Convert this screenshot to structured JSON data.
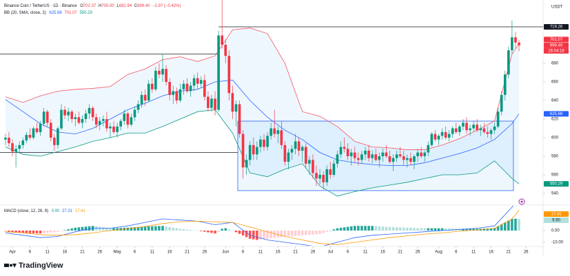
{
  "chart_data": {
    "type": "candlestick",
    "title": "Binance Coin / TetherUS · 1D · Binance",
    "quote": [
      {
        "label": "O",
        "value": "702.37"
      },
      {
        "label": "H",
        "value": "705.00"
      },
      {
        "label": "L",
        "value": "692.94"
      },
      {
        "label": "C",
        "value": "699.40"
      }
    ],
    "change": "−2.97 (−0.42%)",
    "currency": "USDT",
    "countdown": "16:04:18",
    "brand": "TradingView",
    "colors": {
      "up": "#089981",
      "down": "#f23645"
    },
    "grid": false,
    "ylim": [
      528.15,
      748.15
    ],
    "yticks": [
      540,
      560,
      580,
      600,
      620,
      640,
      660,
      680
    ],
    "xlim": [
      -1.56,
      153.9
    ],
    "xticks": [
      {
        "value": 2,
        "label": "Apr"
      },
      {
        "value": 7,
        "label": "6"
      },
      {
        "value": 12,
        "label": "11"
      },
      {
        "value": 17,
        "label": "16"
      },
      {
        "value": 22,
        "label": "21"
      },
      {
        "value": 27,
        "label": "26"
      },
      {
        "value": 32,
        "label": "May"
      },
      {
        "value": 37,
        "label": "6"
      },
      {
        "value": 42,
        "label": "11"
      },
      {
        "value": 47,
        "label": "16"
      },
      {
        "value": 52,
        "label": "21"
      },
      {
        "value": 57,
        "label": "26"
      },
      {
        "value": 63,
        "label": "Jun"
      },
      {
        "value": 68,
        "label": "6"
      },
      {
        "value": 73,
        "label": "11"
      },
      {
        "value": 78,
        "label": "16"
      },
      {
        "value": 83,
        "label": "21"
      },
      {
        "value": 88,
        "label": "26"
      },
      {
        "value": 93,
        "label": "Jul"
      },
      {
        "value": 98,
        "label": "6"
      },
      {
        "value": 103,
        "label": "11"
      },
      {
        "value": 108,
        "label": "16"
      },
      {
        "value": 113,
        "label": "21"
      },
      {
        "value": 118,
        "label": "26"
      },
      {
        "value": 124,
        "label": "Aug"
      },
      {
        "value": 129,
        "label": "6"
      },
      {
        "value": 134,
        "label": "11"
      },
      {
        "value": 139,
        "label": "16"
      },
      {
        "value": 144,
        "label": "21"
      },
      {
        "value": 149,
        "label": "26"
      }
    ],
    "candles": [
      [
        598,
        604,
        592,
        600
      ],
      [
        600,
        606,
        590,
        594
      ],
      [
        594,
        598,
        580,
        585
      ],
      [
        585,
        592,
        568,
        588
      ],
      [
        588,
        596,
        584,
        592
      ],
      [
        592,
        600,
        588,
        597
      ],
      [
        597,
        606,
        594,
        603
      ],
      [
        603,
        610,
        598,
        600
      ],
      [
        600,
        612,
        598,
        610
      ],
      [
        610,
        616,
        604,
        606
      ],
      [
        606,
        618,
        602,
        615
      ],
      [
        615,
        632,
        612,
        628
      ],
      [
        628,
        630,
        612,
        616
      ],
      [
        616,
        620,
        596,
        600
      ],
      [
        600,
        604,
        586,
        592
      ],
      [
        592,
        612,
        588,
        610
      ],
      [
        610,
        636,
        608,
        630
      ],
      [
        630,
        634,
        620,
        624
      ],
      [
        624,
        632,
        618,
        628
      ],
      [
        628,
        630,
        616,
        620
      ],
      [
        620,
        626,
        612,
        622
      ],
      [
        622,
        628,
        614,
        616
      ],
      [
        616,
        624,
        610,
        620
      ],
      [
        620,
        630,
        616,
        626
      ],
      [
        626,
        636,
        620,
        632
      ],
      [
        632,
        634,
        618,
        622
      ],
      [
        622,
        626,
        610,
        614
      ],
      [
        614,
        622,
        608,
        618
      ],
      [
        618,
        624,
        612,
        620
      ],
      [
        620,
        628,
        606,
        610
      ],
      [
        610,
        616,
        600,
        612
      ],
      [
        612,
        618,
        604,
        606
      ],
      [
        606,
        616,
        600,
        612
      ],
      [
        612,
        620,
        608,
        618
      ],
      [
        618,
        630,
        614,
        626
      ],
      [
        626,
        628,
        610,
        614
      ],
      [
        614,
        626,
        612,
        622
      ],
      [
        622,
        634,
        618,
        630
      ],
      [
        630,
        640,
        626,
        636
      ],
      [
        636,
        650,
        632,
        646
      ],
      [
        646,
        652,
        634,
        640
      ],
      [
        640,
        662,
        638,
        658
      ],
      [
        658,
        664,
        648,
        652
      ],
      [
        652,
        676,
        650,
        672
      ],
      [
        672,
        680,
        664,
        668
      ],
      [
        668,
        690,
        660,
        674
      ],
      [
        674,
        678,
        656,
        660
      ],
      [
        660,
        664,
        640,
        646
      ],
      [
        646,
        656,
        636,
        650
      ],
      [
        650,
        654,
        636,
        640
      ],
      [
        640,
        658,
        638,
        652
      ],
      [
        652,
        662,
        646,
        658
      ],
      [
        658,
        664,
        648,
        650
      ],
      [
        650,
        660,
        644,
        656
      ],
      [
        656,
        668,
        650,
        664
      ],
      [
        664,
        670,
        652,
        658
      ],
      [
        658,
        666,
        654,
        662
      ],
      [
        662,
        668,
        640,
        644
      ],
      [
        644,
        650,
        628,
        632
      ],
      [
        632,
        646,
        628,
        642
      ],
      [
        642,
        650,
        624,
        630
      ],
      [
        630,
        715,
        628,
        710
      ],
      [
        710,
        748,
        696,
        700
      ],
      [
        700,
        706,
        680,
        688
      ],
      [
        688,
        694,
        640,
        648
      ],
      [
        648,
        656,
        620,
        628
      ],
      [
        628,
        640,
        612,
        636
      ],
      [
        636,
        640,
        600,
        604
      ],
      [
        604,
        608,
        556,
        568
      ],
      [
        568,
        582,
        560,
        576
      ],
      [
        576,
        596,
        570,
        592
      ],
      [
        592,
        600,
        576,
        582
      ],
      [
        582,
        596,
        576,
        590
      ],
      [
        590,
        602,
        584,
        598
      ],
      [
        598,
        604,
        586,
        590
      ],
      [
        590,
        606,
        586,
        602
      ],
      [
        602,
        616,
        598,
        610
      ],
      [
        610,
        630,
        600,
        604
      ],
      [
        604,
        612,
        594,
        608
      ],
      [
        608,
        618,
        588,
        592
      ],
      [
        592,
        596,
        570,
        574
      ],
      [
        574,
        588,
        566,
        584
      ],
      [
        584,
        592,
        576,
        588
      ],
      [
        588,
        604,
        582,
        596
      ],
      [
        596,
        600,
        580,
        586
      ],
      [
        586,
        592,
        574,
        590
      ],
      [
        590,
        594,
        568,
        572
      ],
      [
        572,
        580,
        560,
        576
      ],
      [
        576,
        582,
        556,
        562
      ],
      [
        562,
        570,
        548,
        556
      ],
      [
        556,
        566,
        550,
        560
      ],
      [
        560,
        564,
        544,
        552
      ],
      [
        552,
        570,
        548,
        566
      ],
      [
        566,
        574,
        556,
        560
      ],
      [
        560,
        576,
        558,
        572
      ],
      [
        572,
        586,
        568,
        582
      ],
      [
        582,
        596,
        578,
        590
      ],
      [
        590,
        600,
        584,
        588
      ],
      [
        588,
        594,
        576,
        580
      ],
      [
        580,
        588,
        570,
        584
      ],
      [
        584,
        590,
        574,
        578
      ],
      [
        578,
        584,
        570,
        576
      ],
      [
        576,
        586,
        572,
        582
      ],
      [
        582,
        590,
        576,
        586
      ],
      [
        586,
        592,
        574,
        578
      ],
      [
        578,
        586,
        572,
        582
      ],
      [
        582,
        588,
        574,
        576
      ],
      [
        576,
        584,
        568,
        580
      ],
      [
        580,
        588,
        574,
        584
      ],
      [
        584,
        592,
        578,
        580
      ],
      [
        580,
        586,
        572,
        574
      ],
      [
        574,
        582,
        564,
        578
      ],
      [
        578,
        586,
        574,
        582
      ],
      [
        582,
        590,
        578,
        580
      ],
      [
        580,
        586,
        570,
        576
      ],
      [
        576,
        582,
        568,
        578
      ],
      [
        578,
        584,
        570,
        574
      ],
      [
        574,
        582,
        566,
        580
      ],
      [
        580,
        588,
        574,
        584
      ],
      [
        584,
        590,
        578,
        580
      ],
      [
        580,
        586,
        574,
        584
      ],
      [
        584,
        596,
        580,
        592
      ],
      [
        592,
        606,
        590,
        604
      ],
      [
        604,
        608,
        596,
        598
      ],
      [
        598,
        604,
        592,
        602
      ],
      [
        602,
        610,
        598,
        606
      ],
      [
        606,
        612,
        598,
        600
      ],
      [
        600,
        608,
        596,
        604
      ],
      [
        604,
        612,
        600,
        610
      ],
      [
        610,
        616,
        604,
        606
      ],
      [
        606,
        614,
        602,
        612
      ],
      [
        612,
        620,
        608,
        616
      ],
      [
        616,
        622,
        604,
        608
      ],
      [
        608,
        614,
        602,
        610
      ],
      [
        610,
        618,
        606,
        614
      ],
      [
        614,
        620,
        606,
        608
      ],
      [
        608,
        614,
        602,
        610
      ],
      [
        610,
        616,
        604,
        606
      ],
      [
        606,
        612,
        600,
        604
      ],
      [
        604,
        610,
        598,
        608
      ],
      [
        608,
        616,
        604,
        612
      ],
      [
        612,
        632,
        610,
        628
      ],
      [
        628,
        650,
        624,
        646
      ],
      [
        646,
        672,
        640,
        668
      ],
      [
        668,
        698,
        664,
        694
      ],
      [
        694,
        726,
        690,
        708
      ],
      [
        708,
        714,
        696,
        702.37
      ],
      [
        702.37,
        705,
        692.94,
        699.4
      ]
    ],
    "bollinger": {
      "name": "BB (20, SMA, close, 2)",
      "fill": "rgba(33,150,243,0.08)",
      "x": [
        0,
        5,
        10,
        15,
        20,
        25,
        30,
        35,
        40,
        45,
        50,
        55,
        60,
        65,
        70,
        75,
        80,
        85,
        90,
        95,
        100,
        105,
        110,
        115,
        120,
        125,
        130,
        135,
        140,
        145,
        147
      ],
      "upper": {
        "color": "#f7525f",
        "values": [
          644,
          638,
          645,
          650,
          652,
          653,
          655,
          668,
          674,
          684,
          687,
          682,
          688,
          716,
          718,
          712,
          680,
          628,
          623,
          612,
          596,
          590,
          589,
          587,
          587,
          592,
          599,
          608,
          618,
          690,
          701.07
        ]
      },
      "middle": {
        "color": "#2962ff",
        "values": [
          641,
          628,
          615,
          606,
          604,
          610,
          620,
          630,
          637,
          645,
          650,
          652,
          660,
          662,
          640,
          622,
          608,
          598,
          584,
          576,
          573,
          571,
          570,
          570,
          573,
          578,
          583,
          589,
          598,
          615,
          625.68
        ]
      },
      "lower": {
        "color": "#089981",
        "values": [
          590,
          582,
          580,
          585,
          590,
          596,
          600,
          605,
          605,
          612,
          620,
          628,
          630,
          605,
          562,
          558,
          566,
          572,
          548,
          537,
          542,
          546,
          549,
          552,
          556,
          560,
          560,
          562,
          575,
          556,
          550.29
        ]
      }
    },
    "drawings": {
      "color": "#131722",
      "hlines": [
        {
          "y": 690,
          "x": [
            -1.56,
            61
          ]
        },
        {
          "y": 584,
          "x": [
            -1.56,
            66.5
          ]
        },
        {
          "y": 719.26,
          "x": [
            61,
            153.9
          ]
        }
      ],
      "box": {
        "x": [
          66.5,
          145.4
        ],
        "y": [
          543,
          617.8
        ],
        "stroke": "#2962ff",
        "fill": "rgba(33,150,243,0.08)"
      }
    },
    "macd": {
      "name": "MACD (close, 12, 26, 9)",
      "legend_values": [
        "9.90",
        "27.31",
        "17.41"
      ],
      "ylim": [
        -12.94,
        21.18
      ],
      "yticks": [
        {
          "value": 0,
          "label": "0.00"
        },
        {
          "value": -10,
          "label": "-10.00"
        }
      ],
      "x": [
        0,
        5,
        10,
        15,
        20,
        25,
        30,
        35,
        40,
        45,
        50,
        55,
        60,
        65,
        70,
        75,
        80,
        85,
        90,
        95,
        100,
        105,
        110,
        115,
        120,
        125,
        130,
        135,
        140,
        145,
        147
      ],
      "macd": {
        "color": "#2962ff",
        "values": [
          -2,
          -4,
          -6,
          -5,
          -1,
          2,
          2,
          4,
          7,
          10,
          9,
          8,
          5,
          7,
          -4,
          -8,
          -10,
          -12,
          -14,
          -10,
          -6,
          -4,
          -3,
          -2,
          -1,
          0,
          1,
          2,
          4,
          20,
          27.31
        ]
      },
      "signal": {
        "color": "#ff9800",
        "values": [
          -1,
          -2,
          -3.5,
          -4,
          -3.5,
          -2,
          0,
          1.5,
          3.5,
          6,
          7.5,
          8,
          7.5,
          7,
          3,
          -1,
          -5,
          -8,
          -11,
          -12,
          -10,
          -8,
          -6,
          -4.5,
          -3,
          -2,
          -0.5,
          0.5,
          2,
          10,
          17.41
        ]
      },
      "histogram": {
        "colors": [
          "#26a69a",
          "#b2dfdb",
          "#ff5252",
          "#ffcdd2"
        ],
        "values": [
          -1,
          -1.2,
          -1.4,
          -1.6,
          -1.8,
          -2,
          -2.1,
          -2.2,
          -2.3,
          -2.4,
          -2.5,
          -2.2,
          -1.9,
          -1.6,
          -1.3,
          -1,
          -0.3,
          0.4,
          1.1,
          1.8,
          2.5,
          2.8,
          3.1,
          3.4,
          3.7,
          4,
          3.6,
          3.2,
          2.8,
          2.4,
          2,
          2.1,
          2.2,
          2.3,
          2.4,
          2.5,
          2.7,
          2.9,
          3.1,
          3.3,
          3.5,
          3.6,
          3.7,
          3.8,
          3.9,
          4,
          3.5,
          3,
          2.5,
          2,
          1.5,
          1.2,
          0.9,
          0.6,
          0.3,
          0,
          -0.5,
          -1,
          -1.5,
          -2,
          -2.5,
          -1,
          1.5,
          2,
          1,
          0,
          -1.4,
          -2.8,
          -4.2,
          -5.6,
          -7,
          -7.5,
          -8,
          -7.5,
          -7.2,
          -7,
          -6.6,
          -6.2,
          -5.8,
          -5.4,
          -5,
          -4.8,
          -4.6,
          -4.4,
          -4.2,
          -4,
          -3.8,
          -3.6,
          -3.4,
          -3.2,
          -3,
          -2,
          -1,
          0,
          1,
          2,
          2.4,
          2.8,
          3.2,
          3.6,
          4,
          4,
          4,
          4,
          4,
          4,
          3.8,
          3.6,
          3.4,
          3.2,
          3,
          2.9,
          2.8,
          2.7,
          2.6,
          2.5,
          2.4,
          2.3,
          2.2,
          2.1,
          2,
          2,
          2,
          2,
          2,
          2,
          1.9,
          1.8,
          1.7,
          1.6,
          1.5,
          1.5,
          1.5,
          1.5,
          1.5,
          1.5,
          1.6,
          1.7,
          1.8,
          1.9,
          2,
          3.6,
          5.2,
          6.8,
          8.4,
          10,
          10.2,
          9.9
        ]
      }
    }
  }
}
